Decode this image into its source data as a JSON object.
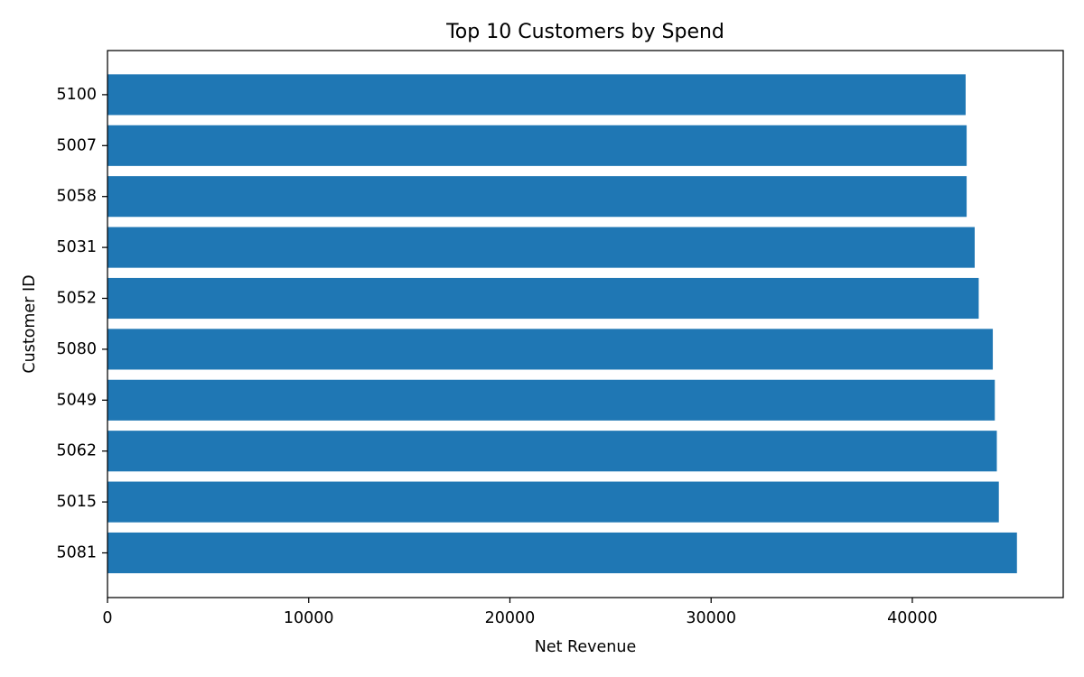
{
  "chart_data": {
    "type": "bar",
    "orientation": "horizontal",
    "title": "Top 10 Customers by Spend",
    "xlabel": "Net Revenue",
    "ylabel": "Customer ID",
    "categories": [
      "5081",
      "5015",
      "5062",
      "5049",
      "5080",
      "5052",
      "5031",
      "5058",
      "5007",
      "5100"
    ],
    "values": [
      45200,
      44300,
      44200,
      44100,
      44000,
      43300,
      43100,
      42700,
      42700,
      42650
    ],
    "xlim": [
      0,
      47500
    ],
    "xticks": [
      0,
      10000,
      20000,
      30000,
      40000
    ],
    "xtick_labels": [
      "0",
      "10000",
      "20000",
      "30000",
      "40000"
    ],
    "grid": false,
    "bar_color": "#1f77b4"
  }
}
